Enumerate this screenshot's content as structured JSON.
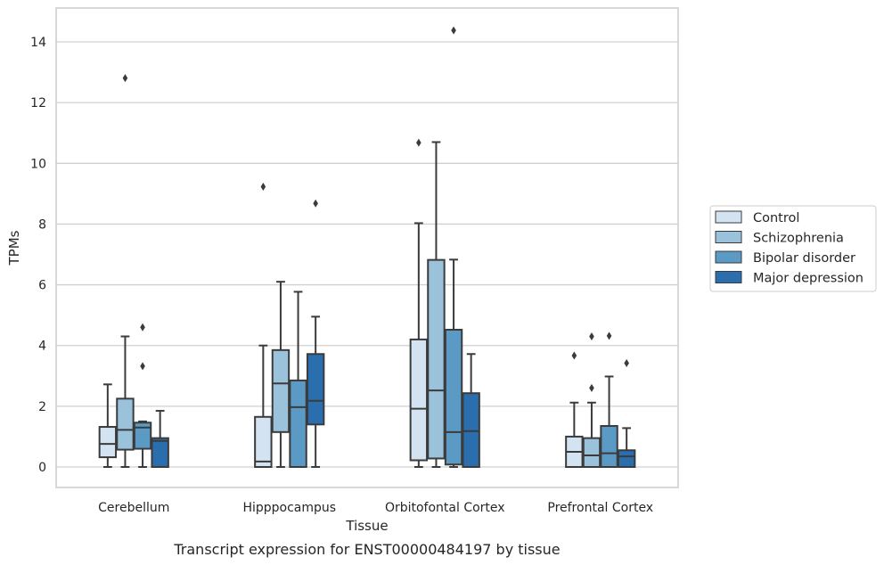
{
  "chart_data": {
    "type": "box",
    "caption": "Transcript expression for ENST00000484197 by tissue",
    "xlabel": "Tissue",
    "ylabel": "TPMs",
    "ylim": [
      -0.7,
      15.2
    ],
    "yticks": [
      0,
      2,
      4,
      6,
      8,
      10,
      12,
      14
    ],
    "ytick_labels": [
      "0",
      "2",
      "4",
      "6",
      "8",
      "10",
      "12",
      "14"
    ],
    "grid": "horizontal",
    "legend_position": "right",
    "categories": [
      "Cerebellum",
      "Hipppocampus",
      "Orbitofontal Cortex",
      "Prefrontal Cortex"
    ],
    "series": [
      {
        "name": "Control",
        "color": "#d3e3f2",
        "boxes": [
          {
            "whislo": 0.0,
            "q1": 0.32,
            "med": 0.76,
            "q3": 1.32,
            "whishi": 2.72,
            "fliers": []
          },
          {
            "whislo": 0.0,
            "q1": 0.0,
            "med": 0.18,
            "q3": 1.65,
            "whishi": 4.0,
            "fliers": [
              9.23
            ]
          },
          {
            "whislo": 0.0,
            "q1": 0.22,
            "med": 1.92,
            "q3": 4.2,
            "whishi": 8.03,
            "fliers": [
              10.68
            ]
          },
          {
            "whislo": 0.0,
            "q1": 0.0,
            "med": 0.5,
            "q3": 1.0,
            "whishi": 2.12,
            "fliers": [
              3.67
            ]
          }
        ]
      },
      {
        "name": "Schizophrenia",
        "color": "#9bc2db",
        "boxes": [
          {
            "whislo": 0.0,
            "q1": 0.57,
            "med": 1.22,
            "q3": 2.25,
            "whishi": 4.3,
            "fliers": [
              12.81
            ]
          },
          {
            "whislo": 0.0,
            "q1": 1.15,
            "med": 2.75,
            "q3": 3.85,
            "whishi": 6.1,
            "fliers": []
          },
          {
            "whislo": 0.0,
            "q1": 0.28,
            "med": 2.52,
            "q3": 6.82,
            "whishi": 10.7,
            "fliers": []
          },
          {
            "whislo": 0.0,
            "q1": 0.0,
            "med": 0.38,
            "q3": 0.95,
            "whishi": 2.12,
            "fliers": [
              2.6,
              4.3
            ]
          }
        ]
      },
      {
        "name": "Bipolar disorder",
        "color": "#5a9ac5",
        "boxes": [
          {
            "whislo": 0.0,
            "q1": 0.6,
            "med": 1.3,
            "q3": 1.46,
            "whishi": 1.5,
            "fliers": [
              3.32,
              4.6
            ]
          },
          {
            "whislo": 0.0,
            "q1": 0.0,
            "med": 1.97,
            "q3": 2.85,
            "whishi": 5.77,
            "fliers": []
          },
          {
            "whislo": 0.0,
            "q1": 0.08,
            "med": 1.15,
            "q3": 4.52,
            "whishi": 6.83,
            "fliers": [
              14.38
            ]
          },
          {
            "whislo": 0.0,
            "q1": 0.0,
            "med": 0.45,
            "q3": 1.35,
            "whishi": 2.98,
            "fliers": [
              4.32
            ]
          }
        ]
      },
      {
        "name": "Major depression",
        "color": "#2a6ead",
        "boxes": [
          {
            "whislo": 0.0,
            "q1": 0.0,
            "med": 0.86,
            "q3": 0.95,
            "whishi": 1.85,
            "fliers": []
          },
          {
            "whislo": 0.0,
            "q1": 1.4,
            "med": 2.18,
            "q3": 3.72,
            "whishi": 4.95,
            "fliers": [
              8.68
            ]
          },
          {
            "whislo": 0.0,
            "q1": 0.0,
            "med": 1.18,
            "q3": 2.43,
            "whishi": 3.72,
            "fliers": []
          },
          {
            "whislo": 0.0,
            "q1": 0.0,
            "med": 0.35,
            "q3": 0.55,
            "whishi": 1.28,
            "fliers": [
              3.42
            ]
          }
        ]
      }
    ]
  }
}
